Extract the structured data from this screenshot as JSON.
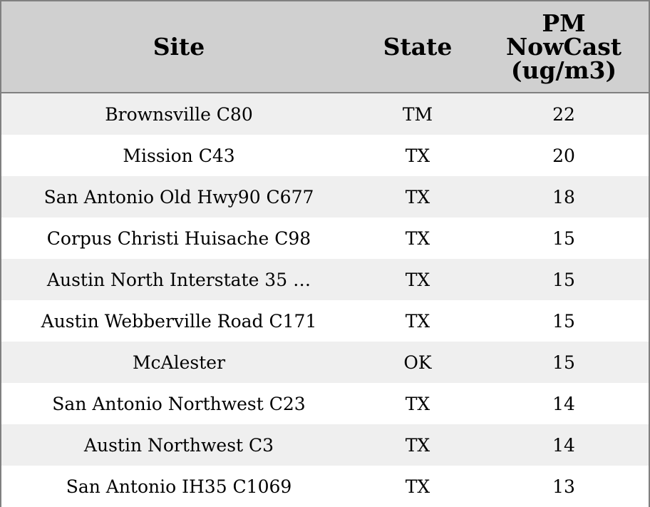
{
  "colors": {
    "header_bg": "#d0d0d0",
    "row_odd_bg": "#efefef",
    "row_even_bg": "#ffffff",
    "border": "#808080"
  },
  "chart_data": {
    "type": "table",
    "columns": [
      "Site",
      "State",
      "PM NowCast (ug/m3)"
    ],
    "header_lines": {
      "site": [
        "Site"
      ],
      "state": [
        "State"
      ],
      "pm": [
        "PM",
        "NowCast",
        "(ug/m3)"
      ]
    },
    "rows": [
      {
        "site": "Brownsville C80",
        "state": "TM",
        "pm": 22
      },
      {
        "site": "Mission C43",
        "state": "TX",
        "pm": 20
      },
      {
        "site": "San Antonio Old Hwy90 C677",
        "state": "TX",
        "pm": 18
      },
      {
        "site": "Corpus Christi Huisache C98",
        "state": "TX",
        "pm": 15
      },
      {
        "site": "Austin North Interstate 35 …",
        "state": "TX",
        "pm": 15
      },
      {
        "site": "Austin Webberville Road C171",
        "state": "TX",
        "pm": 15
      },
      {
        "site": "McAlester",
        "state": "OK",
        "pm": 15
      },
      {
        "site": "San Antonio Northwest C23",
        "state": "TX",
        "pm": 14
      },
      {
        "site": "Austin Northwest C3",
        "state": "TX",
        "pm": 14
      },
      {
        "site": "San Antonio IH35 C1069",
        "state": "TX",
        "pm": 13
      }
    ]
  }
}
